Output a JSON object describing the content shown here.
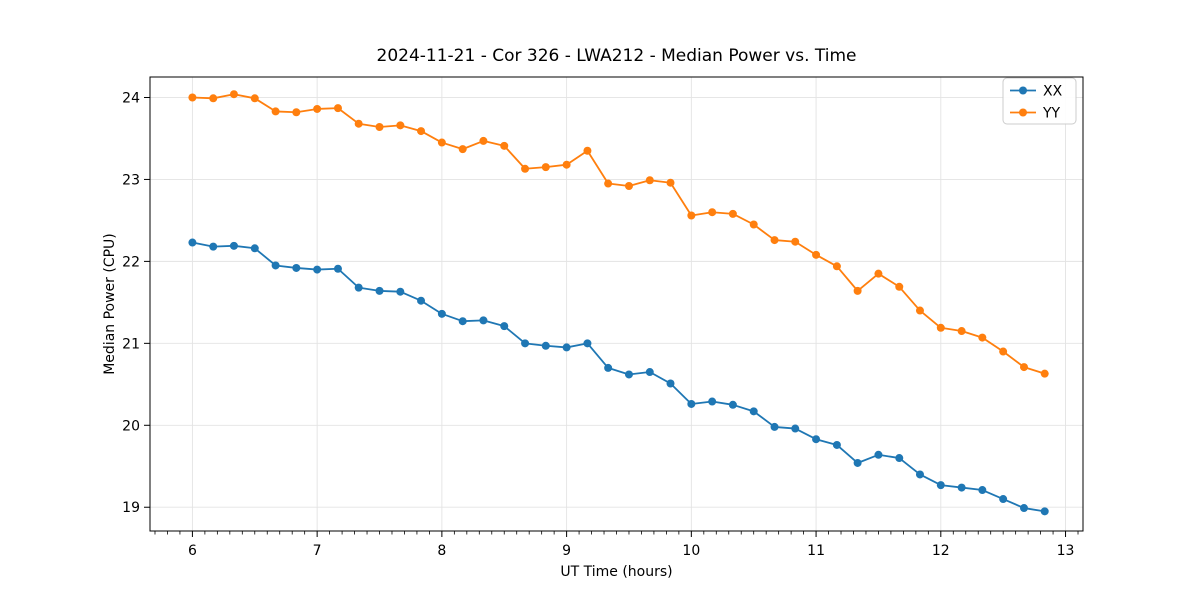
{
  "figure": {
    "background": "#ffffff",
    "text_color": "#000000",
    "grid_color": "#e3e3e3",
    "spine_color": "#000000",
    "legend_border_color": "#cccccc"
  },
  "chart_data": {
    "type": "line",
    "title": "2024-11-21 - Cor 326 - LWA212 - Median Power vs. Time",
    "xlabel": "UT Time (hours)",
    "ylabel": "Median Power (CPU)",
    "xlim": [
      5.66,
      13.14
    ],
    "ylim": [
      18.71,
      24.25
    ],
    "xticks": [
      6,
      7,
      8,
      9,
      10,
      11,
      12,
      13
    ],
    "yticks": [
      19,
      20,
      21,
      22,
      23,
      24
    ],
    "x_minor_step": 0.1,
    "grid": true,
    "legend_position": "upper right",
    "marker": "circle",
    "x": [
      6.0,
      6.167,
      6.333,
      6.5,
      6.667,
      6.833,
      7.0,
      7.167,
      7.333,
      7.5,
      7.667,
      7.833,
      8.0,
      8.167,
      8.333,
      8.5,
      8.667,
      8.833,
      9.0,
      9.167,
      9.333,
      9.5,
      9.667,
      9.833,
      10.0,
      10.167,
      10.333,
      10.5,
      10.667,
      10.833,
      11.0,
      11.167,
      11.333,
      11.5,
      11.667,
      11.833,
      12.0,
      12.167,
      12.333,
      12.5,
      12.667,
      12.833
    ],
    "series": [
      {
        "name": "XX",
        "color": "#1f77b4",
        "values": [
          22.23,
          22.18,
          22.19,
          22.16,
          21.95,
          21.92,
          21.9,
          21.91,
          21.68,
          21.64,
          21.63,
          21.52,
          21.36,
          21.27,
          21.28,
          21.21,
          21.0,
          20.97,
          20.95,
          21.0,
          20.7,
          20.62,
          20.65,
          20.51,
          20.26,
          20.29,
          20.25,
          20.17,
          19.98,
          19.96,
          19.83,
          19.76,
          19.54,
          19.64,
          19.6,
          19.4,
          19.27,
          19.24,
          19.21,
          19.1,
          18.99,
          18.95
        ]
      },
      {
        "name": "YY",
        "color": "#ff7f0e",
        "values": [
          24.0,
          23.99,
          24.04,
          23.99,
          23.83,
          23.82,
          23.86,
          23.87,
          23.68,
          23.64,
          23.66,
          23.59,
          23.45,
          23.37,
          23.47,
          23.41,
          23.13,
          23.15,
          23.18,
          23.35,
          22.95,
          22.92,
          22.99,
          22.96,
          22.56,
          22.6,
          22.58,
          22.45,
          22.26,
          22.24,
          22.08,
          21.94,
          21.64,
          21.85,
          21.69,
          21.4,
          21.19,
          21.15,
          21.07,
          20.9,
          20.71,
          20.63
        ]
      }
    ]
  }
}
